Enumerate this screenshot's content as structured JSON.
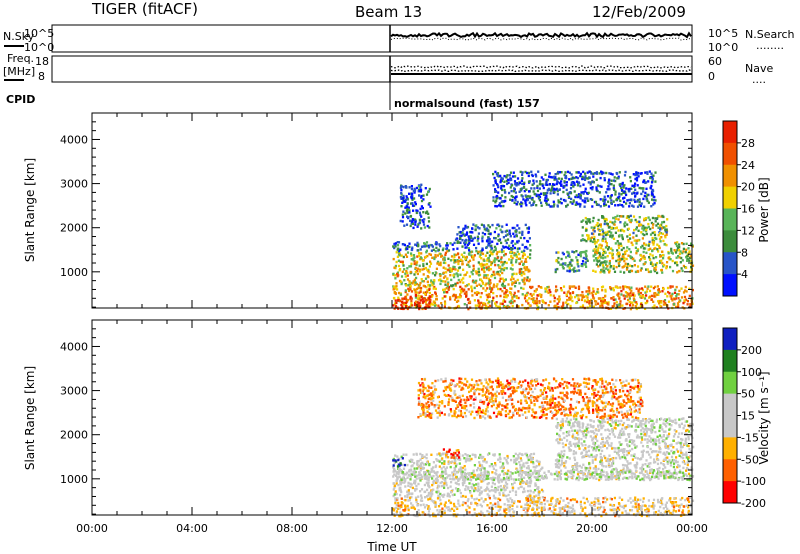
{
  "header": {
    "radar": "TIGER (fitACF)",
    "beam": "Beam 13",
    "date": "12/Feb/2009"
  },
  "noise_panel": {
    "left_label": "N.Sky",
    "right_label": "N.Search",
    "right_legend": "........",
    "left_ticks": [
      "10^5",
      "10^0"
    ],
    "right_ticks": [
      "10^5",
      "10^0"
    ]
  },
  "freq_panel": {
    "left_label_line1": "Freq.",
    "left_label_line2": "[MHz]",
    "right_label": "Nave",
    "right_legend": "....",
    "left_ticks": [
      "18",
      "8"
    ],
    "right_ticks": [
      "60",
      "0"
    ]
  },
  "cpid": {
    "label": "CPID",
    "program": "normalsound (fast) 157"
  },
  "colors": {
    "power_scale": [
      "#0010ff",
      "#2855c8",
      "#3c8c3c",
      "#58b458",
      "#f0d000",
      "#f09000",
      "#f05000",
      "#e82000"
    ],
    "velocity_scale": [
      "#ff0000",
      "#ff6000",
      "#ffb000",
      "#c8c8c8",
      "#c8c8c8",
      "#70d040",
      "#208020",
      "#1020c0"
    ],
    "background": "#ffffff"
  },
  "chart_data": [
    {
      "type": "heatmap",
      "name": "power",
      "xlabel": "",
      "ylabel": "Slant Range [km]",
      "xlim": [
        0,
        24
      ],
      "ylim": [
        180,
        4600
      ],
      "yticks": [
        "4000",
        "3000",
        "2000",
        "1000"
      ],
      "ytick_values": [
        4000,
        3000,
        2000,
        1000
      ],
      "colorbar": {
        "label": "Power [dB]",
        "ticks": [
          "28",
          "24",
          "20",
          "16",
          "12",
          "8",
          "4"
        ],
        "tick_values": [
          28,
          24,
          20,
          16,
          12,
          8,
          4
        ],
        "range": [
          0,
          32
        ]
      },
      "scatter_regions": [
        {
          "t": [
            12.0,
            24.0
          ],
          "range": [
            180,
            700
          ],
          "level": 22
        },
        {
          "t": [
            12.0,
            13.5
          ],
          "range": [
            180,
            500
          ],
          "level": 30
        },
        {
          "t": [
            12.0,
            17.5
          ],
          "range": [
            700,
            1500
          ],
          "level": 18
        },
        {
          "t": [
            12.0,
            17.5
          ],
          "range": [
            1500,
            1700
          ],
          "level": 7
        },
        {
          "t": [
            18.5,
            19.8
          ],
          "range": [
            1000,
            1500
          ],
          "level": 10
        },
        {
          "t": [
            20.0,
            24.0
          ],
          "range": [
            1000,
            1700
          ],
          "level": 16
        },
        {
          "t": [
            19.5,
            23.0
          ],
          "range": [
            1700,
            2300
          ],
          "level": 14
        },
        {
          "t": [
            12.3,
            13.5
          ],
          "range": [
            2000,
            3000
          ],
          "level": 6
        },
        {
          "t": [
            14.5,
            17.5
          ],
          "range": [
            1700,
            2100
          ],
          "level": 6
        },
        {
          "t": [
            16.0,
            22.5
          ],
          "range": [
            2500,
            3300
          ],
          "level": 5
        }
      ]
    },
    {
      "type": "heatmap",
      "name": "velocity",
      "xlabel": "Time UT",
      "ylabel": "Slant Range [km]",
      "xlim": [
        0,
        24
      ],
      "ylim": [
        180,
        4600
      ],
      "xticks": [
        "00:00",
        "04:00",
        "08:00",
        "12:00",
        "16:00",
        "20:00",
        "00:00"
      ],
      "xtick_values": [
        0,
        4,
        8,
        12,
        16,
        20,
        24
      ],
      "yticks": [
        "4000",
        "3000",
        "2000",
        "1000"
      ],
      "ytick_values": [
        4000,
        3000,
        2000,
        1000
      ],
      "colorbar": {
        "label": "Velocity [m s⁻¹]",
        "ticks": [
          "200",
          "100",
          "50",
          "15",
          "-15",
          "-50",
          "-100",
          "-200"
        ],
        "tick_values": [
          200,
          100,
          50,
          15,
          -15,
          -50,
          -100,
          -200
        ],
        "range": [
          -250,
          250
        ]
      },
      "scatter_regions": [
        {
          "t": [
            12.0,
            18.0
          ],
          "range": [
            600,
            1600
          ],
          "level": 0
        },
        {
          "t": [
            12.0,
            24.0
          ],
          "range": [
            180,
            600
          ],
          "level": -60
        },
        {
          "t": [
            18.5,
            24.0
          ],
          "range": [
            1000,
            2400
          ],
          "level": 0
        },
        {
          "t": [
            12.0,
            12.5
          ],
          "range": [
            1300,
            1500
          ],
          "level": 220
        },
        {
          "t": [
            14.0,
            14.7
          ],
          "range": [
            1500,
            1700
          ],
          "level": -180
        },
        {
          "t": [
            12.0,
            24.0
          ],
          "range": [
            1000,
            1200
          ],
          "level": 30
        },
        {
          "t": [
            13.0,
            22.0
          ],
          "range": [
            2400,
            3300
          ],
          "level": -120
        }
      ]
    }
  ]
}
